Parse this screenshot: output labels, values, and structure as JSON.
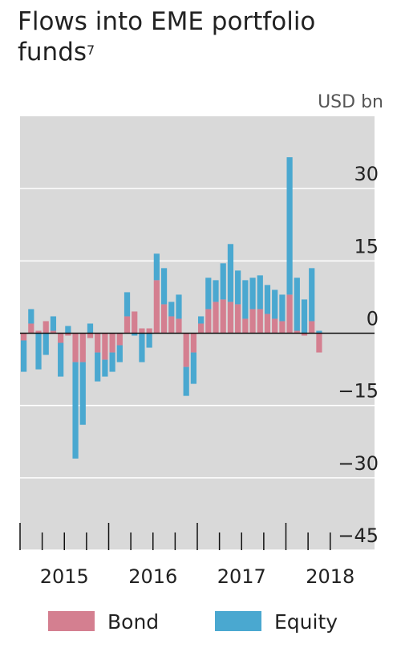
{
  "chart_data": {
    "type": "stacked-bar",
    "title": "Flows into EME portfolio funds",
    "title_note": "7",
    "unit_label": "USD bn",
    "categories": [
      null,
      null,
      null,
      null,
      null,
      null,
      null,
      null,
      null,
      null,
      null,
      null,
      null,
      null,
      null,
      null,
      null,
      null,
      null,
      null,
      null,
      null,
      null,
      null,
      null,
      null,
      null,
      null,
      null,
      null,
      null,
      null,
      null,
      null,
      null,
      null,
      null,
      null,
      null,
      null,
      null
    ],
    "year_labels": [
      "2015",
      "2016",
      "2017",
      "2018"
    ],
    "series": [
      {
        "name": "Bond",
        "color": "#d47f90",
        "values": [
          -1.5,
          2,
          0.5,
          2.5,
          0.5,
          -2,
          -0.5,
          -6,
          -6,
          -1,
          -4,
          -5.5,
          -4,
          -2.5,
          3.5,
          4.5,
          1,
          1,
          11,
          6,
          3.5,
          3,
          -7,
          -4,
          2,
          5,
          6.5,
          7,
          6.5,
          6,
          3,
          5,
          5,
          4,
          3,
          2.5,
          8,
          0.5,
          -0.5,
          2.5,
          -4
        ]
      },
      {
        "name": "Equity",
        "color": "#4aa8d0",
        "values": [
          -6.5,
          3,
          -7.5,
          -4.5,
          3,
          -7,
          1.5,
          -20,
          -13,
          2,
          -6,
          -3.5,
          -4,
          -3.5,
          5,
          -0.5,
          -6,
          -3,
          5.5,
          7.5,
          3,
          5,
          -6,
          -6.5,
          1.5,
          6.5,
          4.5,
          7.5,
          12,
          7,
          8,
          6.5,
          7,
          6,
          6,
          5.5,
          28.5,
          11,
          7,
          11,
          0.5
        ]
      }
    ],
    "ylim": [
      -45,
      45
    ],
    "yticks": [
      {
        "value": -45,
        "label": "−45"
      },
      {
        "value": -30,
        "label": "−30"
      },
      {
        "value": -15,
        "label": "−15"
      },
      0,
      15,
      30
    ],
    "grid": true,
    "legend": "bottom"
  }
}
